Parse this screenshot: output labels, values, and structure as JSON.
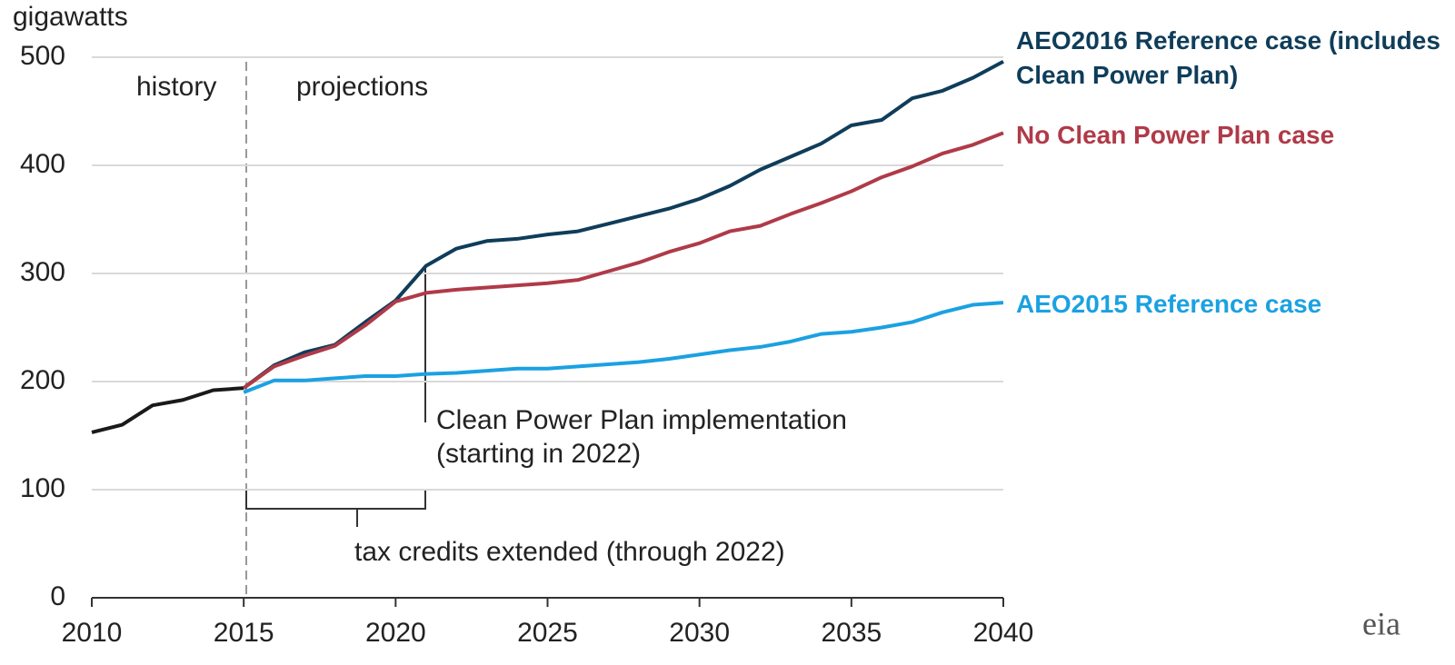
{
  "chart_data": {
    "type": "line",
    "ylabel": "gigawatts",
    "xlim": [
      2010,
      2040
    ],
    "ylim": [
      0,
      500
    ],
    "xticks": [
      2010,
      2015,
      2020,
      2025,
      2030,
      2035,
      2040
    ],
    "yticks": [
      0,
      100,
      200,
      300,
      400,
      500
    ],
    "grid": true,
    "annotations": [
      "history",
      "projections",
      "Clean Power Plan implementation",
      "(starting in 2022)",
      "tax credits extended (through 2022)",
      "eia"
    ],
    "series": [
      {
        "color": "#1a1a1a",
        "x": [
          2010,
          2011,
          2012,
          2013,
          2014,
          2015
        ],
        "values": [
          153,
          160,
          178,
          183,
          192,
          194
        ]
      },
      {
        "name": "AEO2016 Reference case (includes Clean Power Plan)",
        "color": "#0f3d5a",
        "x": [
          2015,
          2016,
          2017,
          2018,
          2019,
          2020,
          2021,
          2022,
          2023,
          2024,
          2025,
          2026,
          2027,
          2028,
          2029,
          2030,
          2031,
          2032,
          2033,
          2034,
          2035,
          2036,
          2037,
          2038,
          2039,
          2040
        ],
        "values": [
          194,
          215,
          227,
          234,
          255,
          275,
          307,
          323,
          330,
          332,
          336,
          339,
          346,
          353,
          360,
          369,
          381,
          396,
          408,
          420,
          437,
          442,
          462,
          469,
          481,
          496
        ]
      },
      {
        "name": "No Clean Power Plan case",
        "color": "#b03a48",
        "x": [
          2015,
          2016,
          2017,
          2018,
          2019,
          2020,
          2021,
          2022,
          2023,
          2024,
          2025,
          2026,
          2027,
          2028,
          2029,
          2030,
          2031,
          2032,
          2033,
          2034,
          2035,
          2036,
          2037,
          2038,
          2039,
          2040
        ],
        "values": [
          194,
          214,
          224,
          233,
          252,
          274,
          282,
          285,
          287,
          289,
          291,
          294,
          302,
          310,
          320,
          328,
          339,
          344,
          355,
          365,
          376,
          389,
          399,
          411,
          419,
          430
        ]
      },
      {
        "name": "AEO2015 Reference case",
        "color": "#1ba1e2",
        "x": [
          2015,
          2016,
          2017,
          2018,
          2019,
          2020,
          2021,
          2022,
          2023,
          2024,
          2025,
          2026,
          2027,
          2028,
          2029,
          2030,
          2031,
          2032,
          2033,
          2034,
          2035,
          2036,
          2037,
          2038,
          2039,
          2040
        ],
        "values": [
          190,
          201,
          201,
          203,
          205,
          205,
          207,
          208,
          210,
          212,
          212,
          214,
          216,
          218,
          221,
          225,
          229,
          232,
          237,
          244,
          246,
          250,
          255,
          264,
          271,
          273
        ]
      }
    ]
  }
}
